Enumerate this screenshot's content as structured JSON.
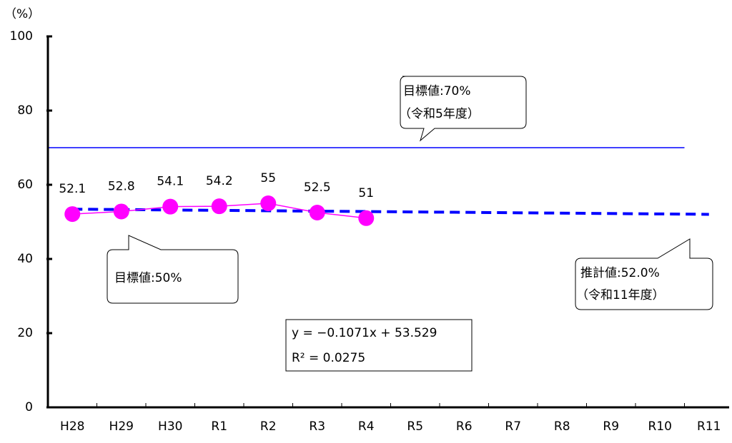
{
  "chart_data": {
    "type": "line",
    "y_unit": "（%）",
    "categories": [
      "H28",
      "H29",
      "H30",
      "R1",
      "R2",
      "R3",
      "R4",
      "R5",
      "R6",
      "R7",
      "R8",
      "R9",
      "R10",
      "R11"
    ],
    "series": [
      {
        "color": "#ff00ff",
        "values": [
          52.1,
          52.8,
          54.1,
          54.2,
          55,
          52.5,
          51,
          null,
          null,
          null,
          null,
          null,
          null,
          null
        ]
      }
    ],
    "target": {
      "value": 70,
      "color": "#0000ff"
    },
    "trend": {
      "start": 53.42,
      "end": 52.03,
      "color": "#0000ff"
    },
    "ylim": [
      0,
      100
    ],
    "yticks": [
      0,
      20,
      40,
      60,
      80,
      100
    ],
    "annotations": {
      "target_note": [
        "目標値:70%",
        "（令和5年度）"
      ],
      "goal_note": [
        "目標値:50%"
      ],
      "estimate_note": [
        "推計値:52.0%",
        "（令和11年度）"
      ],
      "equation": [
        "y = −0.1071x + 53.529",
        "R² = 0.0275"
      ]
    }
  }
}
